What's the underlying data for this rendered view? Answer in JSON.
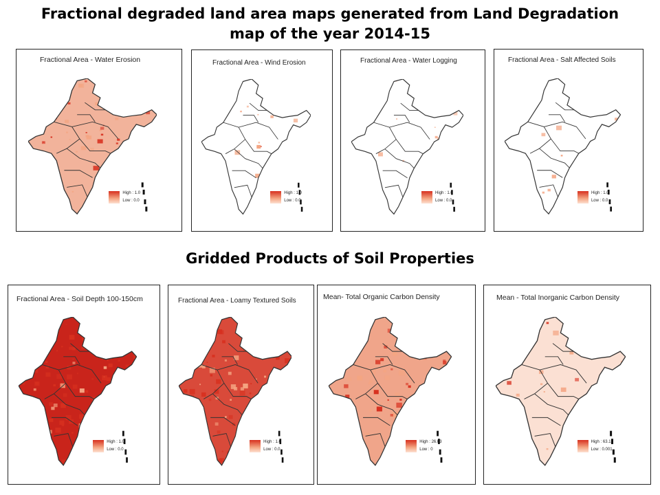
{
  "main_title": "Fractional degraded land area maps generated from Land Degradation map of the year 2014-15",
  "section_title": "Gridded Products of Soil Properties",
  "colors": {
    "high": "#d7301f",
    "mid": "#f4a582",
    "low": "#fde0d2",
    "border": "#333333"
  },
  "row1": [
    {
      "title": "Fractional Area - Water Erosion",
      "high": "High : 1.0",
      "low": "Low : 0.0",
      "fill": "#f2b39b",
      "intensity": 0.45
    },
    {
      "title": "Fractional Area - Wind Erosion",
      "high": "High : 1.0",
      "low": "Low : 0.0",
      "fill": "#ffffff",
      "intensity": 0.05
    },
    {
      "title": "Fractional Area - Water Logging",
      "high": "High : 1.0",
      "low": "Low : 0.0",
      "fill": "#ffffff",
      "intensity": 0.05
    },
    {
      "title": "Fractional Area - Salt Affected Soils",
      "high": "High : 1.0",
      "low": "Low : 0.0",
      "fill": "#ffffff",
      "intensity": 0.08
    }
  ],
  "row2": [
    {
      "title": "Fractional Area - Soil Depth 100-150cm",
      "high": "High : 1.0",
      "low": "Low : 0.0",
      "fill": "#c9241b",
      "intensity": 0.85
    },
    {
      "title": "Fractional Area - Loamy Textured Soils",
      "high": "High : 1.0",
      "low": "Low : 0.0",
      "fill": "#d94a3a",
      "intensity": 0.65
    },
    {
      "title": "Mean- Total Organic Carbon Density",
      "high": "High : 26.03",
      "low": "Low : 0",
      "fill": "#f0a58a",
      "intensity": 0.5
    },
    {
      "title": "Mean - Total Inorganic Carbon Density",
      "high": "High : 63.1",
      "low": "Low : 0.001",
      "fill": "#fbe0d3",
      "intensity": 0.2
    }
  ]
}
